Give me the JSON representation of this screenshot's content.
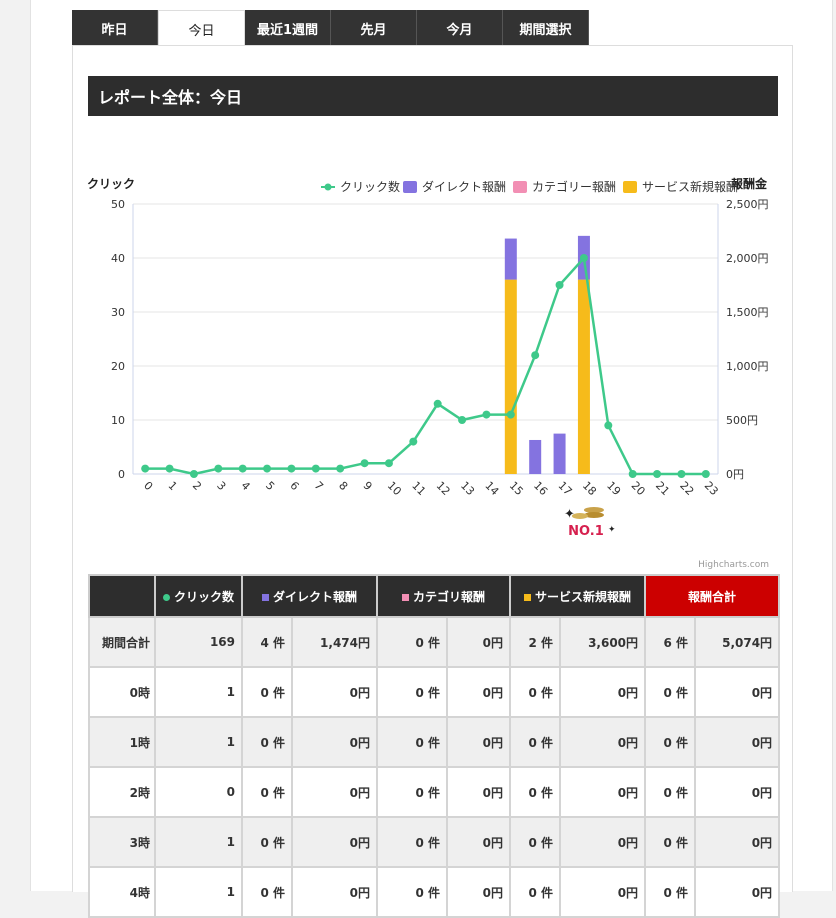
{
  "tabs": [
    "昨日",
    "今日",
    "最近1週間",
    "先月",
    "今月",
    "期間選択"
  ],
  "active_tab": "今日",
  "report_title": "レポート全体：今日",
  "chart_data": {
    "type": "bar",
    "left_axis_title": "クリック",
    "right_axis_title": "報酬金",
    "categories": [
      "0",
      "1",
      "2",
      "3",
      "4",
      "5",
      "6",
      "7",
      "8",
      "9",
      "10",
      "11",
      "12",
      "13",
      "14",
      "15",
      "16",
      "17",
      "18",
      "19",
      "20",
      "21",
      "22",
      "23"
    ],
    "left_ylim": [
      0,
      50
    ],
    "left_ticks": [
      "0",
      "10",
      "20",
      "30",
      "40",
      "50"
    ],
    "right_ylim": [
      0,
      2500
    ],
    "right_ticks": [
      "0円",
      "500円",
      "1,000円",
      "1,500円",
      "2,000円",
      "2,500円"
    ],
    "legend": [
      {
        "name": "クリック数",
        "color": "#3ec98a",
        "shape": "line"
      },
      {
        "name": "ダイレクト報酬",
        "color": "#8473e0",
        "shape": "rect"
      },
      {
        "name": "カテゴリー報酬",
        "color": "#f28fb4",
        "shape": "rect"
      },
      {
        "name": "サービス新規報酬",
        "color": "#f6bb1b",
        "shape": "rect"
      }
    ],
    "series": [
      {
        "name": "クリック数",
        "axis": "left",
        "kind": "line",
        "color": "#3ec98a",
        "values": [
          1,
          1,
          0,
          1,
          1,
          1,
          1,
          1,
          1,
          2,
          2,
          6,
          13,
          10,
          11,
          11,
          22,
          35,
          40,
          9,
          0,
          0,
          0,
          0
        ]
      },
      {
        "name": "ダイレクト報酬",
        "axis": "right",
        "kind": "column",
        "color": "#8473e0",
        "values": [
          0,
          0,
          0,
          0,
          0,
          0,
          0,
          0,
          0,
          0,
          0,
          0,
          0,
          0,
          0,
          380,
          315,
          374,
          405,
          0,
          0,
          0,
          0,
          0
        ]
      },
      {
        "name": "カテゴリー報酬",
        "axis": "right",
        "kind": "column",
        "color": "#f28fb4",
        "values": [
          0,
          0,
          0,
          0,
          0,
          0,
          0,
          0,
          0,
          0,
          0,
          0,
          0,
          0,
          0,
          0,
          0,
          0,
          0,
          0,
          0,
          0,
          0,
          0
        ]
      },
      {
        "name": "サービス新規報酬",
        "axis": "right",
        "kind": "column",
        "color": "#f6bb1b",
        "values": [
          0,
          0,
          0,
          0,
          0,
          0,
          0,
          0,
          0,
          0,
          0,
          0,
          0,
          0,
          0,
          1800,
          0,
          0,
          1800,
          0,
          0,
          0,
          0,
          0
        ]
      }
    ],
    "badge": {
      "text": "NO.1",
      "category": "18"
    },
    "credits": "Highcharts.com"
  },
  "table": {
    "headers": [
      {
        "label": "",
        "color": ""
      },
      {
        "label": "クリック数",
        "color": "#3ec98a",
        "marker": "circle"
      },
      {
        "label": "ダイレクト報酬",
        "color": "#8473e0",
        "marker": "square"
      },
      {
        "label": "カテゴリ報酬",
        "color": "#f28fb4",
        "marker": "square"
      },
      {
        "label": "サービス新規報酬",
        "color": "#f6bb1b",
        "marker": "square"
      },
      {
        "label": "報酬合計",
        "color": "",
        "marker": ""
      }
    ],
    "rows": [
      [
        "期間合計",
        "169",
        "4 件",
        "1,474円",
        "0 件",
        "0円",
        "2 件",
        "3,600円",
        "6 件",
        "5,074円"
      ],
      [
        "0時",
        "1",
        "0 件",
        "0円",
        "0 件",
        "0円",
        "0 件",
        "0円",
        "0 件",
        "0円"
      ],
      [
        "1時",
        "1",
        "0 件",
        "0円",
        "0 件",
        "0円",
        "0 件",
        "0円",
        "0 件",
        "0円"
      ],
      [
        "2時",
        "0",
        "0 件",
        "0円",
        "0 件",
        "0円",
        "0 件",
        "0円",
        "0 件",
        "0円"
      ],
      [
        "3時",
        "1",
        "0 件",
        "0円",
        "0 件",
        "0円",
        "0 件",
        "0円",
        "0 件",
        "0円"
      ],
      [
        "4時",
        "1",
        "0 件",
        "0円",
        "0 件",
        "0円",
        "0 件",
        "0円",
        "0 件",
        "0円"
      ]
    ]
  }
}
